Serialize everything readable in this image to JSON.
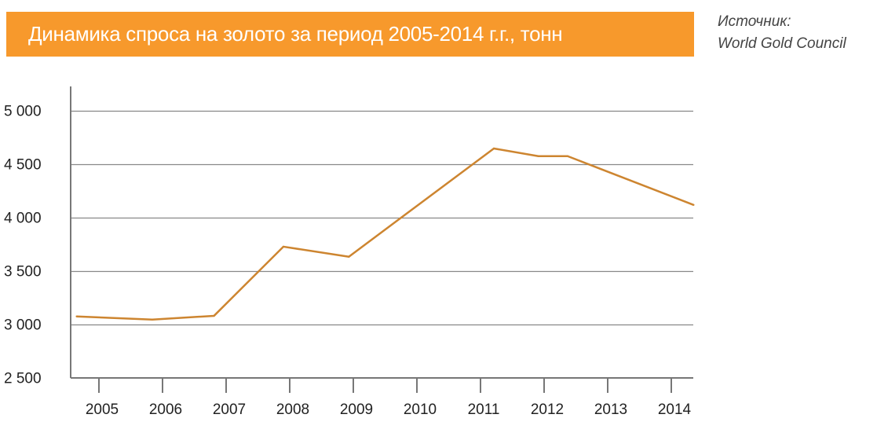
{
  "chart_data": {
    "type": "line",
    "title": "Динамика спроса на золото за период 2005-2014 г.г., тонн",
    "source_label": "Источник:",
    "source_name": "World Gold Council",
    "xlabel": "",
    "ylabel": "",
    "x_ticks": [
      2005,
      2006,
      2007,
      2008,
      2009,
      2010,
      2011,
      2012,
      2013,
      2014
    ],
    "x_tick_labels": [
      "2005",
      "2006",
      "2007",
      "2008",
      "2009",
      "2010",
      "2011",
      "2012",
      "2013",
      "2014"
    ],
    "y_ticks": [
      2500,
      3000,
      3500,
      4000,
      4500,
      5000
    ],
    "y_tick_labels": [
      "2 500",
      "3 000",
      "3 500",
      "4 000",
      "4 500",
      "5 000"
    ],
    "xlim": [
      2004.6,
      2014.35
    ],
    "ylim": [
      2500,
      5000
    ],
    "grid": "horizontal",
    "series": [
      {
        "color": "#CD8530",
        "x": [
          2004.65,
          2005.84,
          2006.81,
          2007.9,
          2008.93,
          2011.21,
          2011.91,
          2012.37,
          2014.35
        ],
        "y": [
          3079,
          3050,
          3085,
          3732,
          3638,
          4651,
          4579,
          4579,
          4123
        ]
      }
    ],
    "colors": {
      "title_bar": "#F7992C",
      "axis": "#777777",
      "grid": "#888888"
    }
  }
}
